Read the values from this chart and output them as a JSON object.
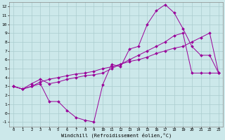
{
  "background_color": "#cce8ea",
  "grid_color": "#aaccce",
  "line_color": "#990099",
  "xlabel": "Windchill (Refroidissement éolien,°C)",
  "x_ticks": [
    0,
    1,
    2,
    3,
    4,
    5,
    6,
    7,
    8,
    9,
    10,
    11,
    12,
    13,
    14,
    15,
    16,
    17,
    18,
    19,
    20,
    21,
    22,
    23
  ],
  "y_ticks": [
    -1,
    0,
    1,
    2,
    3,
    4,
    5,
    6,
    7,
    8,
    9,
    10,
    11,
    12
  ],
  "ylim": [
    -1.5,
    12.5
  ],
  "xlim": [
    -0.5,
    23.5
  ],
  "line1_x": [
    0,
    1,
    2,
    3,
    4,
    5,
    6,
    7,
    8,
    9,
    10,
    11,
    12,
    13,
    14,
    15,
    16,
    17,
    18,
    19,
    20,
    21,
    22,
    23
  ],
  "line1_y": [
    3.0,
    2.7,
    3.0,
    3.3,
    1.3,
    1.3,
    0.3,
    -0.5,
    -0.8,
    -1.0,
    3.2,
    5.5,
    5.2,
    7.2,
    7.5,
    10.0,
    11.5,
    12.2,
    11.3,
    9.5,
    7.5,
    6.5,
    6.5,
    4.5
  ],
  "line2_x": [
    0,
    1,
    2,
    3,
    4,
    5,
    6,
    7,
    8,
    9,
    10,
    11,
    12,
    13,
    14,
    15,
    16,
    17,
    18,
    19,
    20,
    21,
    22,
    23
  ],
  "line2_y": [
    3.0,
    2.7,
    3.3,
    3.8,
    3.3,
    3.5,
    3.8,
    4.0,
    4.2,
    4.3,
    4.5,
    5.0,
    5.5,
    6.0,
    6.5,
    7.0,
    7.5,
    8.0,
    8.7,
    9.0,
    4.5,
    4.5,
    4.5,
    4.5
  ],
  "line3_x": [
    0,
    1,
    2,
    3,
    4,
    5,
    6,
    7,
    8,
    9,
    10,
    11,
    12,
    13,
    14,
    15,
    16,
    17,
    18,
    19,
    20,
    21,
    22,
    23
  ],
  "line3_y": [
    3.0,
    2.7,
    3.0,
    3.5,
    3.8,
    4.0,
    4.2,
    4.4,
    4.5,
    4.7,
    5.0,
    5.2,
    5.5,
    5.8,
    6.0,
    6.3,
    6.7,
    7.0,
    7.3,
    7.5,
    8.0,
    8.5,
    9.0,
    4.5
  ]
}
